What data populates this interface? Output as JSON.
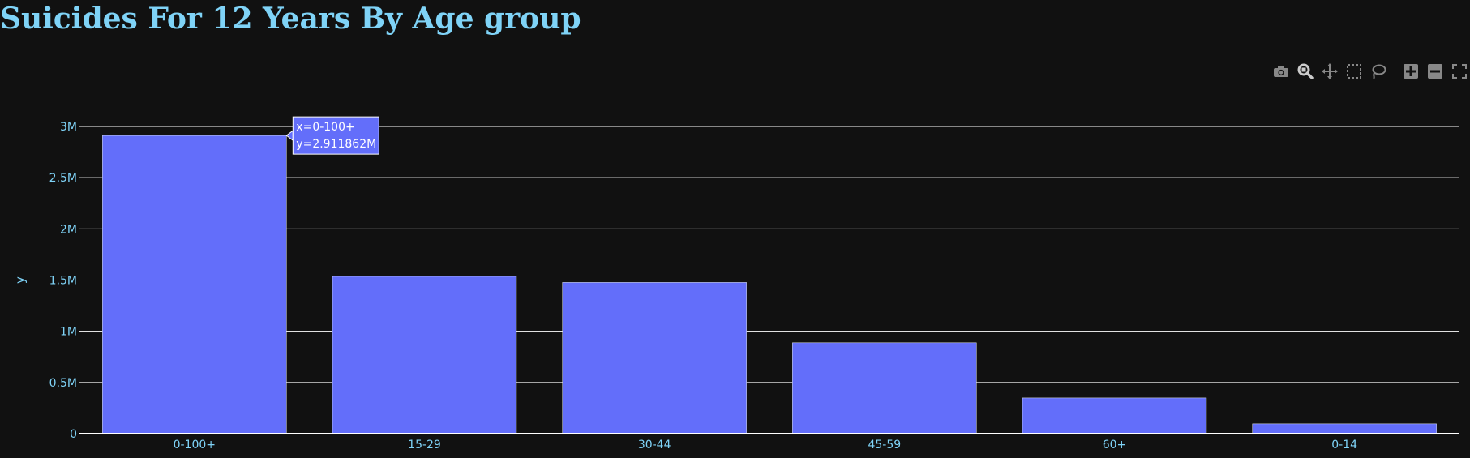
{
  "title": "Suicides For 12 Years By Age group",
  "modebar": {
    "tools": [
      {
        "name": "camera-icon",
        "label": "Download plot as a png"
      },
      {
        "name": "zoom-icon",
        "label": "Zoom"
      },
      {
        "name": "pan-icon",
        "label": "Pan"
      },
      {
        "name": "box-select-icon",
        "label": "Box Select"
      },
      {
        "name": "lasso-select-icon",
        "label": "Lasso Select"
      },
      {
        "name": "zoom-in-icon",
        "label": "Zoom in"
      },
      {
        "name": "zoom-out-icon",
        "label": "Zoom out"
      },
      {
        "name": "autoscale-icon",
        "label": "Autoscale"
      }
    ]
  },
  "chart_data": {
    "type": "bar",
    "title": "Suicides For 12 Years By Age group",
    "xlabel": "",
    "ylabel": "y",
    "categories": [
      "0-100+",
      "15-29",
      "30-44",
      "45-59",
      "60+",
      "0-14"
    ],
    "values": [
      2911862,
      1536000,
      1477000,
      888000,
      349000,
      96000
    ],
    "ylim": [
      0,
      3000000
    ],
    "yticks": [
      0,
      500000,
      1000000,
      1500000,
      2000000,
      2500000,
      3000000
    ],
    "ytick_labels": [
      "0",
      "0.5M",
      "1M",
      "1.5M",
      "2M",
      "2.5M",
      "3M"
    ],
    "grid": true,
    "colors": {
      "bar": "#636efa",
      "bar_outline": "#e5ecf6",
      "grid": "#ffffff",
      "tick_text": "#7fd3f7",
      "background": "#111111"
    },
    "hover": {
      "category": "0-100+",
      "lines": [
        "x=0-100+",
        "y=2.911862M"
      ]
    }
  }
}
